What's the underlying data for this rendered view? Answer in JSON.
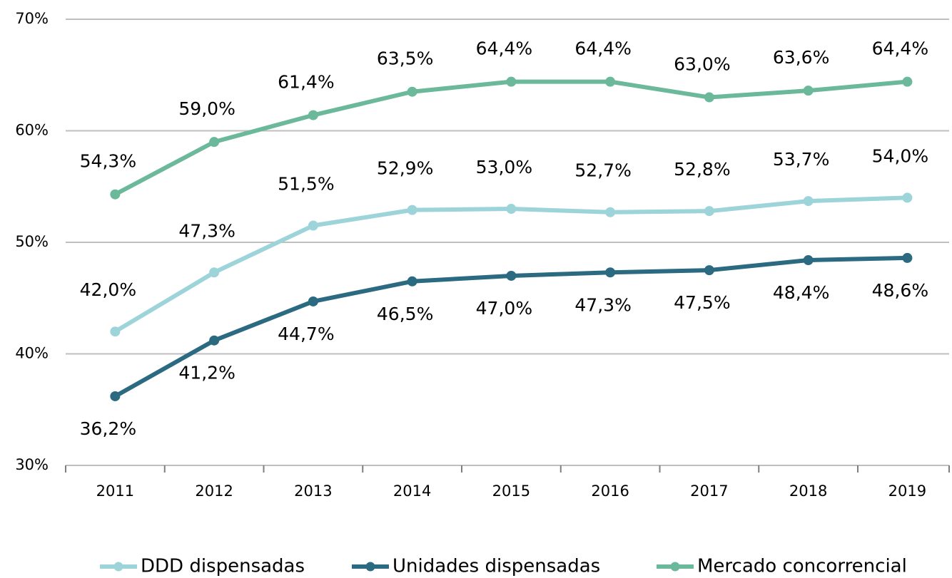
{
  "chart_data": {
    "type": "line",
    "categories": [
      "2011",
      "2012",
      "2013",
      "2014",
      "2015",
      "2016",
      "2017",
      "2018",
      "2019"
    ],
    "series": [
      {
        "name": "DDD dispensadas",
        "color": "#9dd4da",
        "values": [
          42.0,
          47.3,
          51.5,
          52.9,
          53.0,
          52.7,
          52.8,
          53.7,
          54.0
        ],
        "value_labels": [
          "42,0%",
          "47,3%",
          "51,5%",
          "52,9%",
          "53,0%",
          "52,7%",
          "52,8%",
          "53,7%",
          "54,0%"
        ]
      },
      {
        "name": "Unidades dispensadas",
        "color": "#2b6a80",
        "values": [
          36.2,
          41.2,
          44.7,
          46.5,
          47.0,
          47.3,
          47.5,
          48.4,
          48.6
        ],
        "value_labels": [
          "36,2%",
          "41,2%",
          "44,7%",
          "46,5%",
          "47,0%",
          "47,3%",
          "47,5%",
          "48,4%",
          "48,6%"
        ]
      },
      {
        "name": "Mercado concorrencial",
        "color": "#6bb89b",
        "values": [
          54.3,
          59.0,
          61.4,
          63.5,
          64.4,
          64.4,
          63.0,
          63.6,
          64.4
        ],
        "value_labels": [
          "54,3%",
          "59,0%",
          "61,4%",
          "63,5%",
          "64,4%",
          "64,4%",
          "63,0%",
          "63,6%",
          "64,4%"
        ]
      }
    ],
    "ylim": [
      30,
      70
    ],
    "yticks": [
      {
        "value": 30,
        "label": "30%"
      },
      {
        "value": 40,
        "label": "40%"
      },
      {
        "value": 50,
        "label": "50%"
      },
      {
        "value": 60,
        "label": "60%"
      },
      {
        "value": 70,
        "label": "70%"
      }
    ],
    "grid": true,
    "legend": "bottom"
  }
}
